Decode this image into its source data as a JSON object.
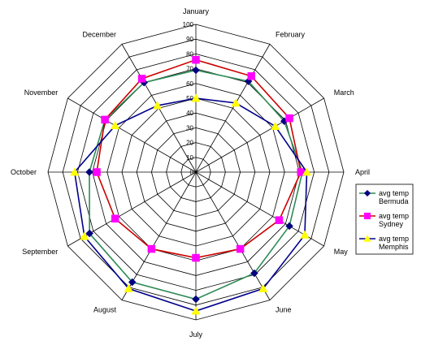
{
  "chart_data": {
    "type": "radar",
    "title": "",
    "categories": [
      "January",
      "February",
      "March",
      "April",
      "May",
      "June",
      "July",
      "August",
      "September",
      "October",
      "November",
      "December"
    ],
    "axis": {
      "min": 0,
      "max": 100,
      "step": 10,
      "ticks": [
        "0",
        "10",
        "20",
        "30",
        "40",
        "50",
        "60",
        "70",
        "80",
        "90",
        "100"
      ]
    },
    "grid": true,
    "legend_position": "right",
    "series": [
      {
        "name": "avg temp Bermuda",
        "legend_lines": [
          "avg temp",
          "Bermuda"
        ],
        "line_color": "#2e8b57",
        "marker_color": "#000080",
        "marker": "diamond",
        "values": [
          69,
          71,
          69,
          72,
          73,
          79,
          86,
          86,
          83,
          72,
          71,
          70
        ]
      },
      {
        "name": "avg temp Sydney",
        "legend_lines": [
          "avg temp",
          "Sydney"
        ],
        "line_color": "#cc0000",
        "marker_color": "#ff00ff",
        "marker": "square",
        "values": [
          76,
          75,
          73,
          71,
          65,
          60,
          58,
          60,
          63,
          67,
          71,
          73
        ]
      },
      {
        "name": "avg temp Memphis",
        "legend_lines": [
          "avg temp",
          "Memphis"
        ],
        "line_color": "#00008b",
        "marker_color": "#ffff00",
        "marker": "triangle",
        "values": [
          50,
          54,
          62,
          75,
          85,
          91,
          94,
          91,
          87,
          82,
          63,
          52
        ]
      }
    ]
  }
}
